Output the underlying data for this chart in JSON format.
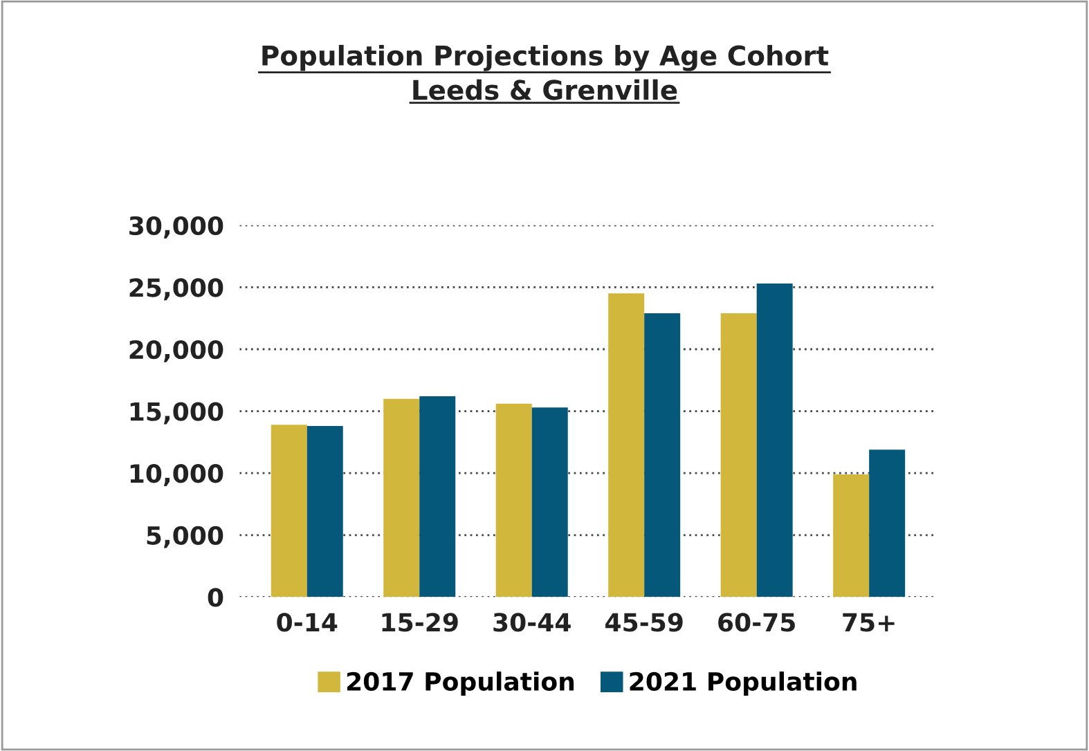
{
  "chart_data": {
    "type": "bar",
    "title": "Population Projections by Age Cohort\nLeeds & Grenville",
    "categories": [
      "0-14",
      "15-29",
      "30-44",
      "45-59",
      "60-75",
      "75+"
    ],
    "series": [
      {
        "name": "2017 Population",
        "color": "#d1b73c",
        "values": [
          13900,
          16000,
          15600,
          24500,
          22900,
          9900
        ]
      },
      {
        "name": "2021 Population",
        "color": "#05587a",
        "values": [
          13800,
          16200,
          15300,
          22900,
          25300,
          11900
        ]
      }
    ],
    "ylim": [
      0,
      30000
    ],
    "yticks": [
      {
        "value": 0,
        "label": "0"
      },
      {
        "value": 5000,
        "label": "5,000"
      },
      {
        "value": 10000,
        "label": "10,000"
      },
      {
        "value": 15000,
        "label": "15,000"
      },
      {
        "value": 20000,
        "label": "20,000"
      },
      {
        "value": 25000,
        "label": "25,000"
      },
      {
        "value": 30000,
        "label": "30,000"
      }
    ],
    "grid": "y",
    "legend": "bottom"
  }
}
